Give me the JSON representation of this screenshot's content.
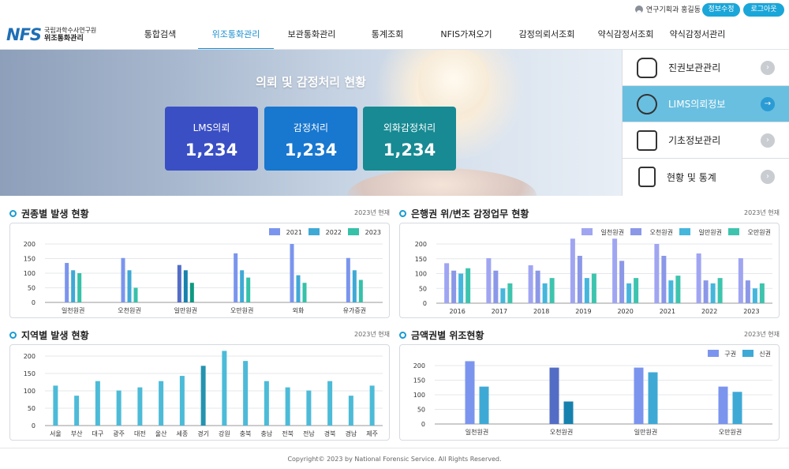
{
  "header": {
    "logo_mark": "NFS",
    "logo_line1": "국립과학수사연구원",
    "logo_line2": "위조통화관리",
    "user_text": "연구기획과 홍길동",
    "info_button": "정보수정",
    "logout_button": "로그아웃",
    "nav": [
      "통합검색",
      "위조통화관리",
      "보관통화관리",
      "통계조회",
      "NFIS가져오기",
      "감정의뢰서조회",
      "약식감정서조회",
      "약식감정서관리"
    ],
    "nav_active": 1
  },
  "hero": {
    "title": "의뢰 및 감정처리 현황",
    "cards": [
      {
        "label": "LMS의뢰",
        "value": "1,234"
      },
      {
        "label": "감정처리",
        "value": "1,234"
      },
      {
        "label": "외화감정처리",
        "value": "1,234"
      }
    ]
  },
  "side_menu": [
    {
      "label": "진권보관관리",
      "icon": "money-bag-icon",
      "active": false
    },
    {
      "label": "LIMS의뢰정보",
      "icon": "coin-search-icon",
      "active": true
    },
    {
      "label": "기초정보관리",
      "icon": "banknote-settings-icon",
      "active": false
    },
    {
      "label": "현황 및 통계",
      "icon": "report-check-icon",
      "active": false
    }
  ],
  "panels": {
    "p1": {
      "title": "권종별 발생 현황",
      "year": "2023년 현재"
    },
    "p2": {
      "title": "은행권 위/변조 감정업무 현황",
      "year": "2023년 현재"
    },
    "p3": {
      "title": "지역별 발생 현황",
      "year": "2023년 현재"
    },
    "p4": {
      "title": "금액권별 위조현황",
      "year": "2023년 현재"
    }
  },
  "footer": "Copyright© 2023 by National Forensic Service. All Rights Reserved.",
  "chart_data": [
    {
      "type": "bar",
      "categories": [
        "일천원권",
        "오천원권",
        "일만원권",
        "오만원권",
        "외화",
        "유가증권"
      ],
      "series": [
        {
          "name": "2021",
          "values": [
            135,
            152,
            128,
            168,
            200,
            152
          ],
          "color": "#7b95ee"
        },
        {
          "name": "2022",
          "values": [
            110,
            110,
            110,
            110,
            93,
            110
          ],
          "color": "#3fa9d6"
        },
        {
          "name": "2023",
          "values": [
            100,
            50,
            67,
            85,
            67,
            77
          ],
          "color": "#36c1a9"
        }
      ],
      "highlight_index": 2,
      "yticks": [
        0,
        50,
        100,
        150,
        200
      ],
      "ylim": [
        0,
        200
      ]
    },
    {
      "type": "bar",
      "categories": [
        "2016",
        "2017",
        "2018",
        "2019",
        "2020",
        "2021",
        "2022",
        "2023"
      ],
      "series": [
        {
          "name": "일천원권",
          "values": [
            135,
            152,
            128,
            218,
            218,
            200,
            168,
            152
          ],
          "color": "#a0a5f2"
        },
        {
          "name": "오천원권",
          "values": [
            110,
            110,
            110,
            160,
            143,
            160,
            77,
            77
          ],
          "color": "#8b98e8"
        },
        {
          "name": "일만원권",
          "values": [
            100,
            50,
            67,
            85,
            67,
            77,
            67,
            50
          ],
          "color": "#45b6dc"
        },
        {
          "name": "오만원권",
          "values": [
            118,
            67,
            85,
            100,
            85,
            93,
            85,
            67
          ],
          "color": "#3ec4ae"
        }
      ],
      "yticks": [
        0,
        50,
        100,
        150,
        200
      ],
      "ylim": [
        0,
        200
      ]
    },
    {
      "type": "bar",
      "categories": [
        "서울",
        "부산",
        "대구",
        "광주",
        "대전",
        "울산",
        "세종",
        "경기",
        "강원",
        "충북",
        "충남",
        "전북",
        "전남",
        "경북",
        "경남",
        "제주"
      ],
      "series": [
        {
          "name": "",
          "values": [
            115,
            86,
            128,
            101,
            110,
            128,
            143,
            172,
            215,
            186,
            128,
            110,
            101,
            128,
            86,
            115
          ],
          "color": "#4cbbd8"
        }
      ],
      "highlight_index": 7,
      "yticks": [
        0,
        50,
        100,
        150,
        200
      ],
      "ylim": [
        0,
        200
      ]
    },
    {
      "type": "bar",
      "categories": [
        "일천원권",
        "오천원권",
        "일만원권",
        "오만원권"
      ],
      "series": [
        {
          "name": "구권",
          "values": [
            215,
            193,
            193,
            128
          ],
          "color": "#7b95ee"
        },
        {
          "name": "신권",
          "values": [
            128,
            77,
            177,
            110
          ],
          "color": "#3fa9d6"
        }
      ],
      "highlight_index": 1,
      "yticks": [
        0,
        50,
        100,
        150,
        200
      ],
      "ylim": [
        0,
        200
      ]
    }
  ]
}
